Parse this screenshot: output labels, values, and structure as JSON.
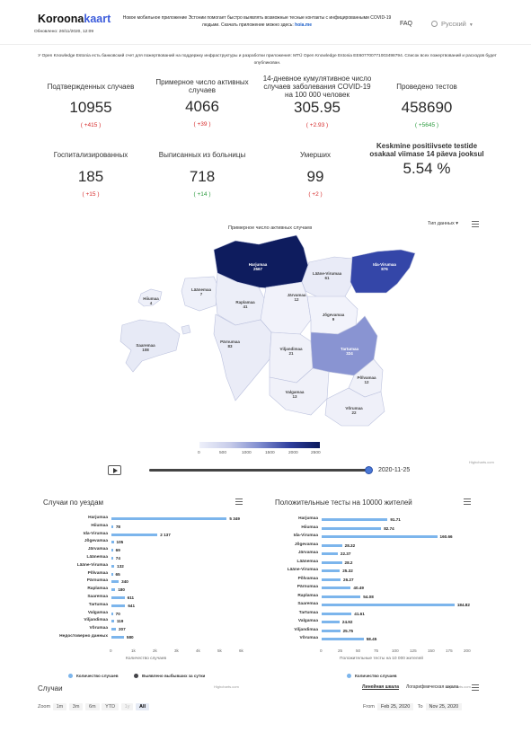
{
  "header": {
    "logo_main": "Koroona",
    "logo_accent": "kaart",
    "updated": "Обновлено: 26/11/2020, 12:09",
    "message": "Новое мобильное приложение Эстонии помогает быстро выявлять возможные тесные контакты с инфицированными COVID-19 людьми. Скачать приложение можно здесь:",
    "message_link": "hoia.me",
    "faq": "FAQ",
    "language": "Русский"
  },
  "donate_text": "У Open Knowledge Estonia есть банковский счет для пожертвований на поддержку инфраструктуры и разработки приложения: MTÜ Open Knowledge Estonia EE607700771003498794. Список всех пожертвований и расходов будет опубликован.",
  "stats": [
    {
      "label": "Подтвержденных случаев",
      "value": "10955",
      "delta": "( +415 )",
      "tone": "red"
    },
    {
      "label": "Примерное число активных случаев",
      "value": "4066",
      "delta": "( +39 )",
      "tone": "red"
    },
    {
      "label": "14-дневное кумулятивное число случаев заболевания COVID-19 на 100 000 человек",
      "value": "305.95",
      "delta": "( +2.93 )",
      "tone": "red"
    },
    {
      "label": "Проведено тестов",
      "value": "458690",
      "delta": "( +5645 )",
      "tone": "green"
    },
    {
      "label": "Госпитализированных",
      "value": "185",
      "delta": "( +15 )",
      "tone": "red"
    },
    {
      "label": "Выписанных из больницы",
      "value": "718",
      "delta": "( +14 )",
      "tone": "green"
    },
    {
      "label": "Умерших",
      "value": "99",
      "delta": "( +2 )",
      "tone": "red"
    },
    {
      "label": "Keskmine positiivsete testide osakaal viimase 14 päeva jooksul",
      "value": "5.54 %",
      "delta": "",
      "tone": "red"
    }
  ],
  "map": {
    "title": "Примерное число активных случаев",
    "data_type": "Тип данных",
    "credit": "Highcharts.com",
    "legend_ticks": [
      "0",
      "500",
      "1000",
      "1500",
      "2000",
      "2500"
    ],
    "regions": [
      {
        "name": "Harjumaa",
        "value": "2567"
      },
      {
        "name": "Ida-Virumaa",
        "value": "876"
      },
      {
        "name": "Lääne-Virumaa",
        "value": "61"
      },
      {
        "name": "Hiiumaa",
        "value": "4"
      },
      {
        "name": "Raplamaa",
        "value": "41"
      },
      {
        "name": "Järvamaa",
        "value": "12"
      },
      {
        "name": "Jõgevamaa",
        "value": "9"
      },
      {
        "name": "Läänemaa",
        "value": "7"
      },
      {
        "name": "Saaremaa",
        "value": "108"
      },
      {
        "name": "Pärnumaa",
        "value": "83"
      },
      {
        "name": "Viljandimaa",
        "value": "21"
      },
      {
        "name": "Tartumaa",
        "value": "324"
      },
      {
        "name": "Põlvamaa",
        "value": "12"
      },
      {
        "name": "Valgamaa",
        "value": "13"
      },
      {
        "name": "Võrumaa",
        "value": "22"
      }
    ]
  },
  "player": {
    "date": "2020-11-25",
    "progress": 0.99
  },
  "county_chart": {
    "title": "Случаи по уездам",
    "axis_title": "Количество случаев",
    "ticks": [
      "0",
      "1k",
      "2k",
      "3k",
      "4k",
      "5k",
      "6k"
    ],
    "legend": [
      "Количество случаев",
      "Выявлено выбывших за сутки"
    ],
    "credit": "Highcharts.com",
    "rows": [
      {
        "label": "Harjumaa",
        "value": 5349,
        "display": "5 349"
      },
      {
        "label": "Hiiumaa",
        "value": 78,
        "display": "78"
      },
      {
        "label": "Ida-Virumaa",
        "value": 2137,
        "display": "2 137"
      },
      {
        "label": "Jõgevamaa",
        "value": 105,
        "display": "105"
      },
      {
        "label": "Järvamaa",
        "value": 69,
        "display": "69"
      },
      {
        "label": "Läänemaa",
        "value": 74,
        "display": "74"
      },
      {
        "label": "Lääne-Virumaa",
        "value": 132,
        "display": "132"
      },
      {
        "label": "Põlvamaa",
        "value": 65,
        "display": "65"
      },
      {
        "label": "Pärnumaa",
        "value": 340,
        "display": "340"
      },
      {
        "label": "Raplamaa",
        "value": 180,
        "display": "180"
      },
      {
        "label": "Saaremaa",
        "value": 611,
        "display": "611"
      },
      {
        "label": "Tartumaa",
        "value": 641,
        "display": "641"
      },
      {
        "label": "Valgamaa",
        "value": 70,
        "display": "70"
      },
      {
        "label": "Viljandimaa",
        "value": 119,
        "display": "119"
      },
      {
        "label": "Võrumaa",
        "value": 207,
        "display": "207"
      },
      {
        "label": "Недостоверно данных",
        "value": 580,
        "display": "580"
      }
    ]
  },
  "tests_chart": {
    "title": "Положительные тесты на 10000 жителей",
    "axis_title": "Положительные тесты на 10 000 жителей",
    "ticks": [
      "0",
      "25",
      "50",
      "75",
      "100",
      "125",
      "150",
      "175",
      "200"
    ],
    "legend": [
      "Количество случаев"
    ],
    "credit": "Highcharts.com",
    "rows": [
      {
        "label": "Harjumaa",
        "value": 91.71,
        "display": "91.71"
      },
      {
        "label": "Hiiumaa",
        "value": 82.74,
        "display": "82.74"
      },
      {
        "label": "Ida-Virumaa",
        "value": 160.66,
        "display": "160.66"
      },
      {
        "label": "Jõgevamaa",
        "value": 28.32,
        "display": "28.32"
      },
      {
        "label": "Järvamaa",
        "value": 22.37,
        "display": "22.37"
      },
      {
        "label": "Läänemaa",
        "value": 28.2,
        "display": "28.2"
      },
      {
        "label": "Lääne-Virumaa",
        "value": 25.32,
        "display": "25.32"
      },
      {
        "label": "Põlvamaa",
        "value": 26.27,
        "display": "26.27"
      },
      {
        "label": "Pärnumaa",
        "value": 40.49,
        "display": "40.49"
      },
      {
        "label": "Raplamaa",
        "value": 54.08,
        "display": "54.08"
      },
      {
        "label": "Saaremaa",
        "value": 184.82,
        "display": "184.82"
      },
      {
        "label": "Tartumaa",
        "value": 41.61,
        "display": "41.61"
      },
      {
        "label": "Valgamaa",
        "value": 24.92,
        "display": "24.92"
      },
      {
        "label": "Viljandimaa",
        "value": 25.75,
        "display": "25.75"
      },
      {
        "label": "Võrumaa",
        "value": 58.45,
        "display": "58.45"
      }
    ]
  },
  "cases_section": {
    "title": "Случаи",
    "linear": "Линейная шкала",
    "log": "Логарифмическая шкала",
    "zoom_label": "Zoom",
    "zoom_buttons": [
      "1m",
      "3m",
      "6m",
      "YTD",
      "1y",
      "All"
    ],
    "from_label": "From",
    "from_date": "Feb 25, 2020",
    "to_label": "To",
    "to_date": "Nov 25, 2020"
  }
}
